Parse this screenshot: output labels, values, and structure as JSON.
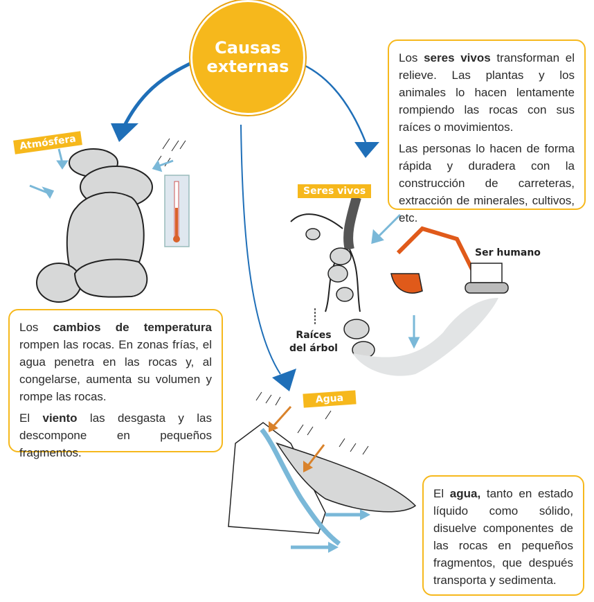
{
  "center": {
    "line1": "Causas",
    "line2": "externas"
  },
  "tags": {
    "atmosfera": "Atmósfera",
    "seres_vivos": "Seres vivos",
    "agua": "Agua"
  },
  "labels": {
    "ser_humano": "Ser humano",
    "raices_1": "Raíces",
    "raices_2": "del árbol"
  },
  "box_seres_vivos": {
    "p1_pre": "Los ",
    "p1_bold": "seres vivos",
    "p1_post": " transforman el relieve. Las plantas y los animales lo hacen lentamente rompiendo las rocas con sus raíces o movimientos.",
    "p2": "Las personas lo hacen de forma rápida y duradera con la construcción de carreteras, extracción de minerales, cultivos, etc."
  },
  "box_temperatura": {
    "p1_pre": "Los ",
    "p1_bold": "cambios de temperatura",
    "p1_post": " rompen las rocas. En zonas frías, el agua penetra en las rocas y, al congelarse, aumenta su volumen y rompe las rocas.",
    "p2_pre": "El ",
    "p2_bold": "viento",
    "p2_post": " las desgasta y las descompone en pequeños fragmentos."
  },
  "box_agua": {
    "p1_pre": "El ",
    "p1_bold": "agua,",
    "p1_post": " tanto en estado líquido como sólido, disuelve componentes de las rocas en pequeños fragmentos, que después transporta y sedimenta."
  },
  "colors": {
    "accent": "#f6b81c",
    "arrow_blue": "#1f6fb8",
    "light_blue": "#7ab8d8",
    "orange_arrow": "#d9822b",
    "rock": "#d7d8d8"
  }
}
